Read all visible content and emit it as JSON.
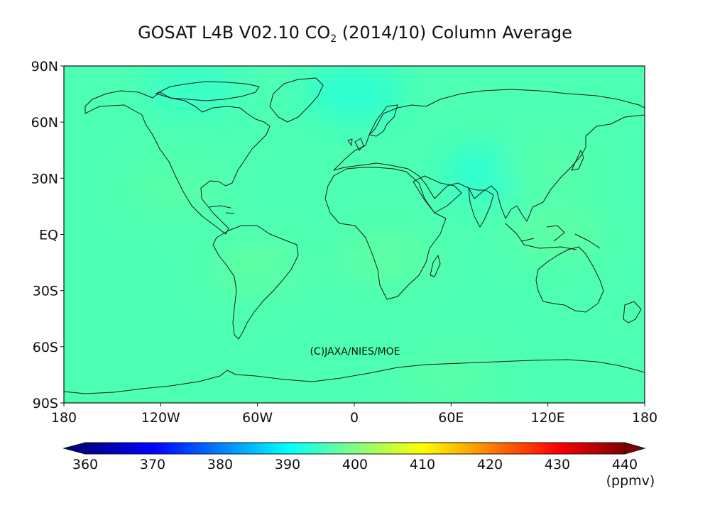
{
  "title": {
    "main": "GOSAT L4B V02.10 CO",
    "subscript": "2",
    "period": " (2014/10) Column Average"
  },
  "credit": "(C)JAXA/NIES/MOE",
  "chart_data": {
    "type": "heatmap",
    "title": "GOSAT L4B V02.10 CO2 (2014/10) Column Average",
    "variable": "CO2 column average",
    "units": "(ppmv)",
    "value_range": [
      360,
      440
    ],
    "xlim": [
      -180,
      180
    ],
    "ylim": [
      -90,
      90
    ],
    "x_ticks": [
      {
        "value": -180,
        "label": "180"
      },
      {
        "value": -120,
        "label": "120W"
      },
      {
        "value": -60,
        "label": "60W"
      },
      {
        "value": 0,
        "label": "0"
      },
      {
        "value": 60,
        "label": "60E"
      },
      {
        "value": 120,
        "label": "120E"
      },
      {
        "value": 180,
        "label": "180"
      }
    ],
    "y_ticks": [
      {
        "value": 90,
        "label": "90N"
      },
      {
        "value": 60,
        "label": "60N"
      },
      {
        "value": 30,
        "label": "30N"
      },
      {
        "value": 0,
        "label": "EQ"
      },
      {
        "value": -30,
        "label": "30S"
      },
      {
        "value": -60,
        "label": "60S"
      },
      {
        "value": -90,
        "label": "90S"
      }
    ],
    "colorbar": {
      "ticks": [
        360,
        370,
        380,
        390,
        400,
        410,
        420,
        430,
        440
      ],
      "tick_labels": [
        "360",
        "370",
        "380",
        "390",
        "400",
        "410",
        "420",
        "430",
        "440"
      ],
      "colors": [
        "#00008b",
        "#0000ff",
        "#0080ff",
        "#00ffff",
        "#80ff80",
        "#ffff00",
        "#ff8000",
        "#ff0000",
        "#800000"
      ],
      "extend": "both"
    },
    "field": {
      "background_value": 396,
      "features": [
        {
          "lon": -110,
          "lat": 25,
          "value": 397
        },
        {
          "lon": -60,
          "lat": -18,
          "value": 397.5
        },
        {
          "lon": 20,
          "lat": -12,
          "value": 397.5
        },
        {
          "lon": 125,
          "lat": 0,
          "value": 397.5
        },
        {
          "lon": 85,
          "lat": 33,
          "value": 393
        },
        {
          "lon": 0,
          "lat": 75,
          "value": 393
        },
        {
          "lon": -100,
          "lat": 78,
          "value": 394
        },
        {
          "lon": 120,
          "lat": 35,
          "value": 397
        },
        {
          "lon": 60,
          "lat": -75,
          "value": 397
        }
      ]
    }
  }
}
